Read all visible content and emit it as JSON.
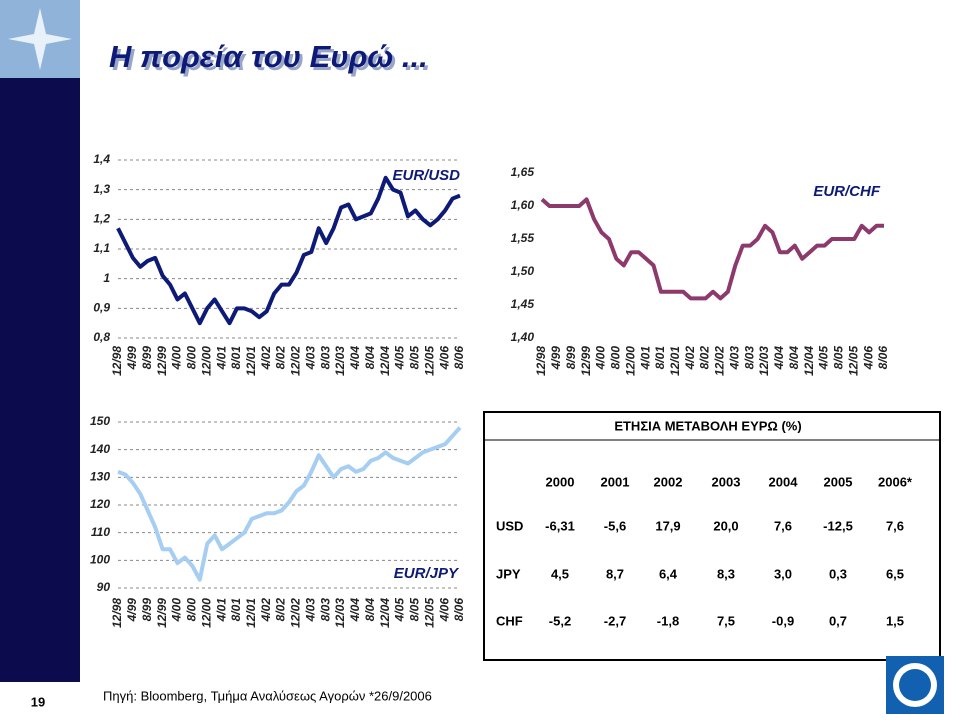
{
  "title": "Η πορεία του Ευρώ ...",
  "chart_data": [
    {
      "type": "line",
      "title": "EUR/USD",
      "categories": [
        "12/98",
        null,
        "4/99",
        null,
        "8/99",
        null,
        "12/99",
        null,
        "4/00",
        null,
        "8/00",
        null,
        "12/00",
        null,
        "4/01",
        null,
        "8/01",
        null,
        "12/01",
        null,
        "4/02",
        null,
        "8/02",
        null,
        "12/02",
        null,
        "4/03",
        null,
        "8/03",
        null,
        "12/03",
        null,
        "4/04",
        null,
        "8/04",
        null,
        "12/04",
        null,
        "4/05",
        null,
        "8/05",
        null,
        "12/05",
        null,
        "4/06",
        null,
        "8/06"
      ],
      "series": [
        {
          "name": "EUR/USD",
          "color": "#0d1a78",
          "values": [
            1.17,
            1.12,
            1.07,
            1.04,
            1.06,
            1.07,
            1.01,
            0.98,
            0.93,
            0.95,
            0.9,
            0.85,
            0.9,
            0.93,
            0.89,
            0.85,
            0.9,
            0.9,
            0.89,
            0.87,
            0.89,
            0.95,
            0.98,
            0.98,
            1.02,
            1.08,
            1.09,
            1.17,
            1.12,
            1.17,
            1.24,
            1.25,
            1.2,
            1.21,
            1.22,
            1.27,
            1.34,
            1.3,
            1.29,
            1.21,
            1.23,
            1.2,
            1.18,
            1.2,
            1.23,
            1.27,
            1.28
          ]
        }
      ],
      "ylim": [
        0.8,
        1.4
      ],
      "yticks": [
        {
          "value": 0.8,
          "label": "0,8"
        },
        {
          "value": 0.9,
          "label": "0,9"
        },
        1,
        {
          "value": 1.1,
          "label": "1,1"
        },
        {
          "value": 1.2,
          "label": "1,2"
        },
        {
          "value": 1.3,
          "label": "1,3"
        },
        {
          "value": 1.4,
          "label": "1,4"
        }
      ],
      "grid": true
    },
    {
      "type": "line",
      "title": "EUR/CHF",
      "categories": [
        "12/98",
        null,
        "4/99",
        null,
        "8/99",
        null,
        "12/99",
        null,
        "4/00",
        null,
        "8/00",
        null,
        "12/00",
        null,
        "4/01",
        null,
        "8/01",
        null,
        "12/01",
        null,
        "4/02",
        null,
        "8/02",
        null,
        "12/02",
        null,
        "4/03",
        null,
        "8/03",
        null,
        "12/03",
        null,
        "4/04",
        null,
        "8/04",
        null,
        "12/04",
        null,
        "4/05",
        null,
        "8/05",
        null,
        "12/05",
        null,
        "4/06",
        null,
        "8/06"
      ],
      "series": [
        {
          "name": "EUR/CHF",
          "color": "#8c3a6c",
          "values": [
            1.61,
            1.6,
            1.6,
            1.6,
            1.6,
            1.6,
            1.61,
            1.58,
            1.56,
            1.55,
            1.52,
            1.51,
            1.53,
            1.53,
            1.52,
            1.51,
            1.47,
            1.47,
            1.47,
            1.47,
            1.46,
            1.46,
            1.46,
            1.47,
            1.46,
            1.47,
            1.51,
            1.54,
            1.54,
            1.55,
            1.57,
            1.56,
            1.53,
            1.53,
            1.54,
            1.52,
            1.53,
            1.54,
            1.54,
            1.55,
            1.55,
            1.55,
            1.55,
            1.57,
            1.56,
            1.57,
            1.57
          ]
        }
      ],
      "ylim": [
        1.4,
        1.65
      ],
      "yticks": [
        {
          "value": 1.4,
          "label": "1,40"
        },
        {
          "value": 1.45,
          "label": "1,45"
        },
        {
          "value": 1.5,
          "label": "1,50"
        },
        {
          "value": 1.55,
          "label": "1,55"
        },
        {
          "value": 1.6,
          "label": "1,60"
        },
        {
          "value": 1.65,
          "label": "1,65"
        }
      ],
      "grid": false
    },
    {
      "type": "line",
      "title": "EUR/JPY",
      "categories": [
        "12/98",
        null,
        "4/99",
        null,
        "8/99",
        null,
        "12/99",
        null,
        "4/00",
        null,
        "8/00",
        null,
        "12/00",
        null,
        "4/01",
        null,
        "8/01",
        null,
        "12/01",
        null,
        "4/02",
        null,
        "8/02",
        null,
        "12/02",
        null,
        "4/03",
        null,
        "8/03",
        null,
        "12/03",
        null,
        "4/04",
        null,
        "8/04",
        null,
        "12/04",
        null,
        "4/05",
        null,
        "8/05",
        null,
        "12/05",
        null,
        "4/06",
        null,
        "8/06"
      ],
      "series": [
        {
          "name": "EUR/JPY",
          "color": "#a6cdf2",
          "values": [
            132,
            131,
            128,
            124,
            118,
            112,
            104,
            104,
            99,
            101,
            98,
            93,
            106,
            109,
            104,
            106,
            108,
            110,
            115,
            116,
            117,
            117,
            118,
            121,
            125,
            127,
            132,
            138,
            134,
            130,
            133,
            134,
            132,
            133,
            136,
            137,
            139,
            137,
            136,
            135,
            137,
            139,
            140,
            141,
            142,
            145,
            148
          ]
        }
      ],
      "ylim": [
        90,
        150
      ],
      "yticks": [
        90,
        100,
        110,
        120,
        130,
        140,
        150
      ],
      "grid": true
    }
  ],
  "table": {
    "title": "ΕΤΗΣΙΑ ΜΕΤΑΒΟΛΗ ΕΥΡΩ (%)",
    "columns": [
      "2000",
      "2001",
      "2002",
      "2003",
      "2004",
      "2005",
      "2006*"
    ],
    "rows": [
      {
        "label": "USD",
        "cells": [
          "-6,31",
          "-5,6",
          "17,9",
          "20,0",
          "7,6",
          "-12,5",
          "7,6"
        ]
      },
      {
        "label": "JPY",
        "cells": [
          "4,5",
          "8,7",
          "6,4",
          "8,3",
          "3,0",
          "0,3",
          "6,5"
        ]
      },
      {
        "label": "CHF",
        "cells": [
          "-5,2",
          "-2,7",
          "-1,8",
          "7,5",
          "-0,9",
          "0,7",
          "1,5"
        ]
      }
    ]
  },
  "source": "Πηγή: Bloomberg, Τμήμα Αναλύσεως Αγορών *26/9/2006",
  "page_number": "19"
}
